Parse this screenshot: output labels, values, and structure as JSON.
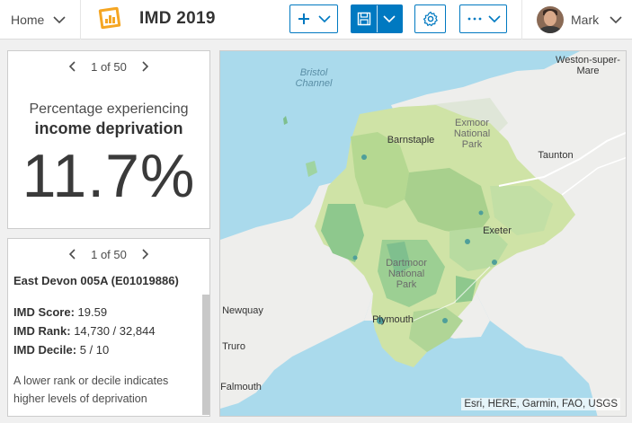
{
  "header": {
    "home_label": "Home",
    "app_title": "IMD 2019",
    "user_name": "Mark"
  },
  "indicator_panel": {
    "pager_text": "1 of 50",
    "title": "Percentage experiencing",
    "subtitle": "income deprivation",
    "value": "11.7%"
  },
  "details_panel": {
    "pager_text": "1 of 50",
    "area_name": "East Devon 005A (E01019886)",
    "rows": [
      {
        "label": "IMD Score:",
        "value": "19.59"
      },
      {
        "label": "IMD Rank:",
        "value": "14,730 / 32,844"
      },
      {
        "label": "IMD Decile:",
        "value": "5 / 10"
      }
    ],
    "note": "A lower rank or decile indicates higher levels of deprivation"
  },
  "map": {
    "labels": {
      "bristol_channel": "Bristol Channel",
      "weston": "Weston-super-Mare",
      "exmoor": "Exmoor National Park",
      "barnstaple": "Barnstaple",
      "taunton": "Taunton",
      "exeter": "Exeter",
      "dartmoor": "Dartmoor National Park",
      "newquay": "Newquay",
      "plymouth": "Plymouth",
      "truro": "Truro",
      "falmouth": "Falmouth"
    },
    "attribution": "Esri, HERE, Garmin, FAO, USGS"
  },
  "colors": {
    "accent": "#0079c1",
    "water": "#aadaec",
    "land": "#eeeeec",
    "region_light": "#cfe3a6",
    "region_mid": "#a8d08d",
    "region_dark": "#7fbf8e"
  }
}
